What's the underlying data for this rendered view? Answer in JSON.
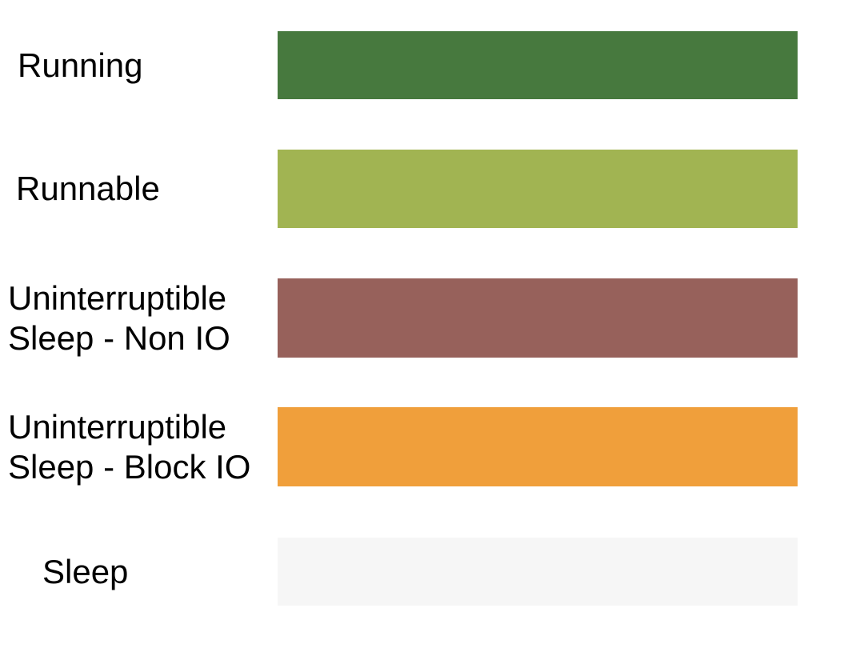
{
  "legend": {
    "items": [
      {
        "name": "running",
        "label_lines": [
          "Running"
        ],
        "color": "#47793E"
      },
      {
        "name": "runnable",
        "label_lines": [
          "Runnable"
        ],
        "color": "#A1B452"
      },
      {
        "name": "uninterruptible-sleep-non-io",
        "label_lines": [
          "Uninterruptible",
          "Sleep - Non IO"
        ],
        "color": "#97615B"
      },
      {
        "name": "uninterruptible-sleep-block-io",
        "label_lines": [
          "Uninterruptible",
          "Sleep - Block IO"
        ],
        "color": "#F09F3B"
      },
      {
        "name": "sleep",
        "label_lines": [
          "Sleep"
        ],
        "color": "#F6F6F6"
      }
    ]
  }
}
